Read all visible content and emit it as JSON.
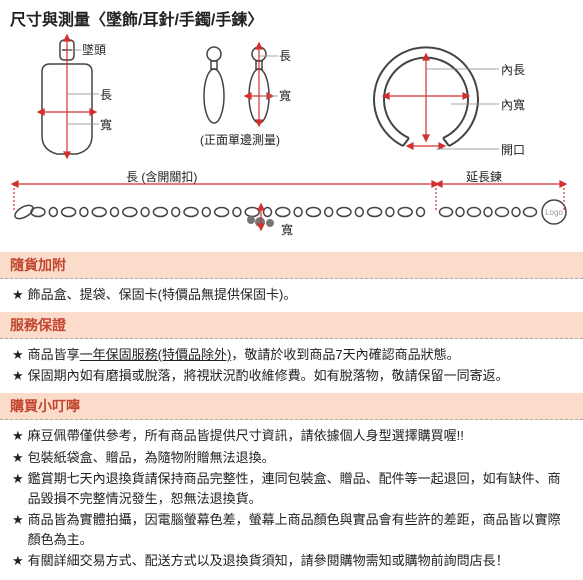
{
  "colors": {
    "headerBg": "#fbdccb",
    "headerText": "#c2462f",
    "bodyText": "#222222",
    "outline": "#444444",
    "outlineLight": "#888888",
    "measure": "#d03030",
    "dashBorder": "#aaaaaa",
    "background": "#ffffff"
  },
  "typography": {
    "body_fontsize": 13,
    "title_fontsize": 16,
    "header_fontsize": 14,
    "diagram_label_fontsize": 12
  },
  "title": "尺寸與測量〈墜飾/耳針/手鐲/手鍊〉",
  "pendant": {
    "labels": {
      "head": "墜頭",
      "length": "長",
      "width": "寬"
    }
  },
  "earring": {
    "labels": {
      "length": "長",
      "width": "寬",
      "note": "(正面單邊測量)"
    }
  },
  "bangle": {
    "labels": {
      "innerLength": "內長",
      "innerWidth": "內寬",
      "opening": "開口"
    }
  },
  "chain": {
    "labels": {
      "lengthWithClasp": "長 (含開關扣)",
      "extender": "延長鍊",
      "width": "寬",
      "logo": "Logo"
    }
  },
  "sections": {
    "attached": {
      "header": "隨貨加附",
      "items": [
        "飾品盒、提袋、保固卡(特價品無提供保固卡)。"
      ]
    },
    "warranty": {
      "header": "服務保證",
      "items": [
        "商品皆享一年保固服務(特價品除外)，敬請於收到商品7天內確認商品狀態。",
        "保固期內如有磨損或脫落，將視狀況酌收維修費。如有脫落物，敬請保留一同寄返。"
      ],
      "underlineFirst": "一年保固服務(特價品除外)"
    },
    "notes": {
      "header": "購買小叮嚀",
      "items": [
        "麻豆佩帶僅供參考，所有商品皆提供尺寸資訊，請依據個人身型選擇購買喔!!",
        "包裝紙袋盒、贈品，為隨物附贈無法退換。",
        "鑑賞期七天內退換貨請保持商品完整性，連同包裝盒、贈品、配件等一起退回，如有缺件、商品毀損不完整情況發生，恕無法退換貨。",
        "商品皆為實體拍攝，因電腦螢幕色差，螢幕上商品顏色與實品會有些許的差距，商品皆以實際顏色為主。",
        "有關詳細交易方式、配送方式以及退換貨須知，請參閱購物需知或購物前詢問店長！"
      ]
    }
  },
  "star": "★"
}
